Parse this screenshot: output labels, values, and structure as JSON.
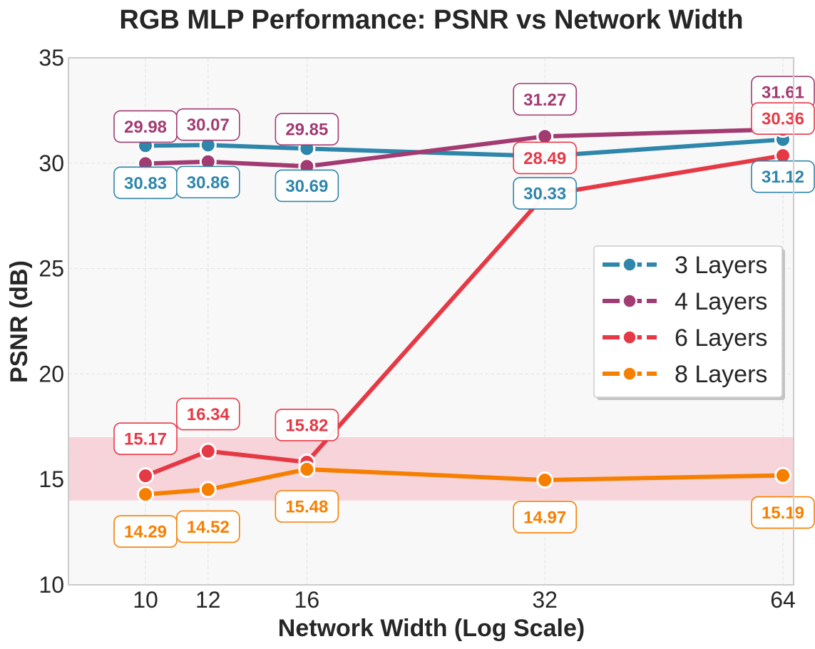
{
  "chart_data": {
    "type": "line",
    "title": "RGB MLP Performance: PSNR vs Network Width",
    "xlabel": "Network Width (Log Scale)",
    "ylabel": "PSNR (dB)",
    "x_scale": "log",
    "x": [
      10,
      12,
      16,
      32,
      64
    ],
    "x_tick_labels": [
      "10",
      "12",
      "16",
      "32",
      "64"
    ],
    "ylim": [
      10,
      35
    ],
    "y_ticks": [
      10,
      15,
      20,
      25,
      30,
      35
    ],
    "grid": true,
    "legend_position": "center-right",
    "shaded_band": {
      "y_range": [
        14,
        17
      ],
      "color": "#f6cfd5"
    },
    "series": [
      {
        "name": "3 Layers",
        "color": "#2e86ab",
        "values": [
          30.83,
          30.86,
          30.69,
          30.33,
          31.12
        ],
        "labels": [
          "30.83",
          "30.86",
          "30.69",
          "30.33",
          "31.12"
        ],
        "label_side": [
          "below",
          "below",
          "below",
          "below",
          "below"
        ]
      },
      {
        "name": "4 Layers",
        "color": "#a23b72",
        "values": [
          29.98,
          30.07,
          29.85,
          31.27,
          31.61
        ],
        "labels": [
          "29.98",
          "30.07",
          "29.85",
          "31.27",
          "31.61"
        ],
        "label_side": [
          "above",
          "above",
          "above",
          "above",
          "above"
        ]
      },
      {
        "name": "6 Layers",
        "color": "#e63946",
        "values": [
          15.17,
          16.34,
          15.82,
          28.49,
          30.36
        ],
        "labels": [
          "15.17",
          "16.34",
          "15.82",
          "28.49",
          "30.36"
        ],
        "label_side": [
          "above",
          "above",
          "above",
          "above",
          "above"
        ]
      },
      {
        "name": "8 Layers",
        "color": "#f77f00",
        "values": [
          14.29,
          14.52,
          15.48,
          14.97,
          15.19
        ],
        "labels": [
          "14.29",
          "14.52",
          "15.48",
          "14.97",
          "15.19"
        ],
        "label_side": [
          "below",
          "below",
          "below",
          "below",
          "below"
        ]
      }
    ]
  }
}
